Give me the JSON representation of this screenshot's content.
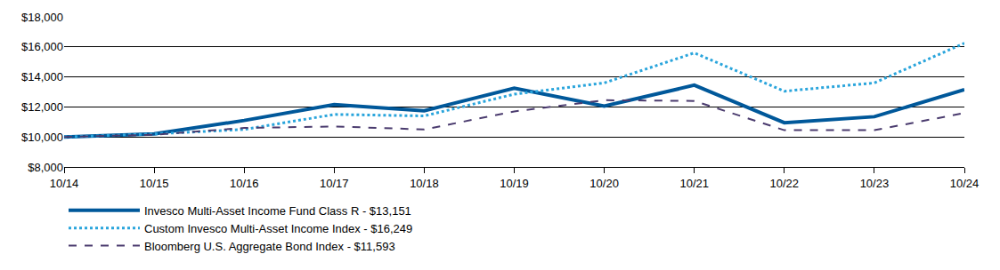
{
  "chart_data": {
    "type": "line",
    "categories": [
      "10/14",
      "10/15",
      "10/16",
      "10/17",
      "10/18",
      "10/19",
      "10/20",
      "10/21",
      "10/22",
      "10/23",
      "10/24"
    ],
    "series": [
      {
        "name": "Invesco Multi-Asset Income Fund Class R - $13,151",
        "color": "#00589a",
        "line_style": "solid",
        "values": [
          10000,
          10200,
          11100,
          12150,
          11750,
          13250,
          12050,
          13450,
          10950,
          11350,
          13151
        ]
      },
      {
        "name": "Custom Invesco Multi-Asset Income Index - $16,249",
        "color": "#2aa5dc",
        "line_style": "dot",
        "values": [
          10000,
          10200,
          10500,
          11500,
          11400,
          12850,
          13600,
          15600,
          13050,
          13600,
          16249
        ]
      },
      {
        "name": "Bloomberg U.S. Aggregate Bond Index - $11,593",
        "color": "#4a3b6e",
        "line_style": "dash",
        "values": [
          10000,
          10150,
          10600,
          10700,
          10500,
          11700,
          12450,
          12400,
          10450,
          10450,
          11593
        ]
      }
    ],
    "ylim": [
      8000,
      18000
    ],
    "yticks": [
      {
        "value": 8000,
        "label": "$8,000"
      },
      {
        "value": 10000,
        "label": "$10,000"
      },
      {
        "value": 12000,
        "label": "$12,000"
      },
      {
        "value": 14000,
        "label": "$14,000"
      },
      {
        "value": 16000,
        "label": "$16,000"
      },
      {
        "value": 18000,
        "label": "$18,000"
      }
    ],
    "grid": true,
    "legend": "bottom"
  }
}
